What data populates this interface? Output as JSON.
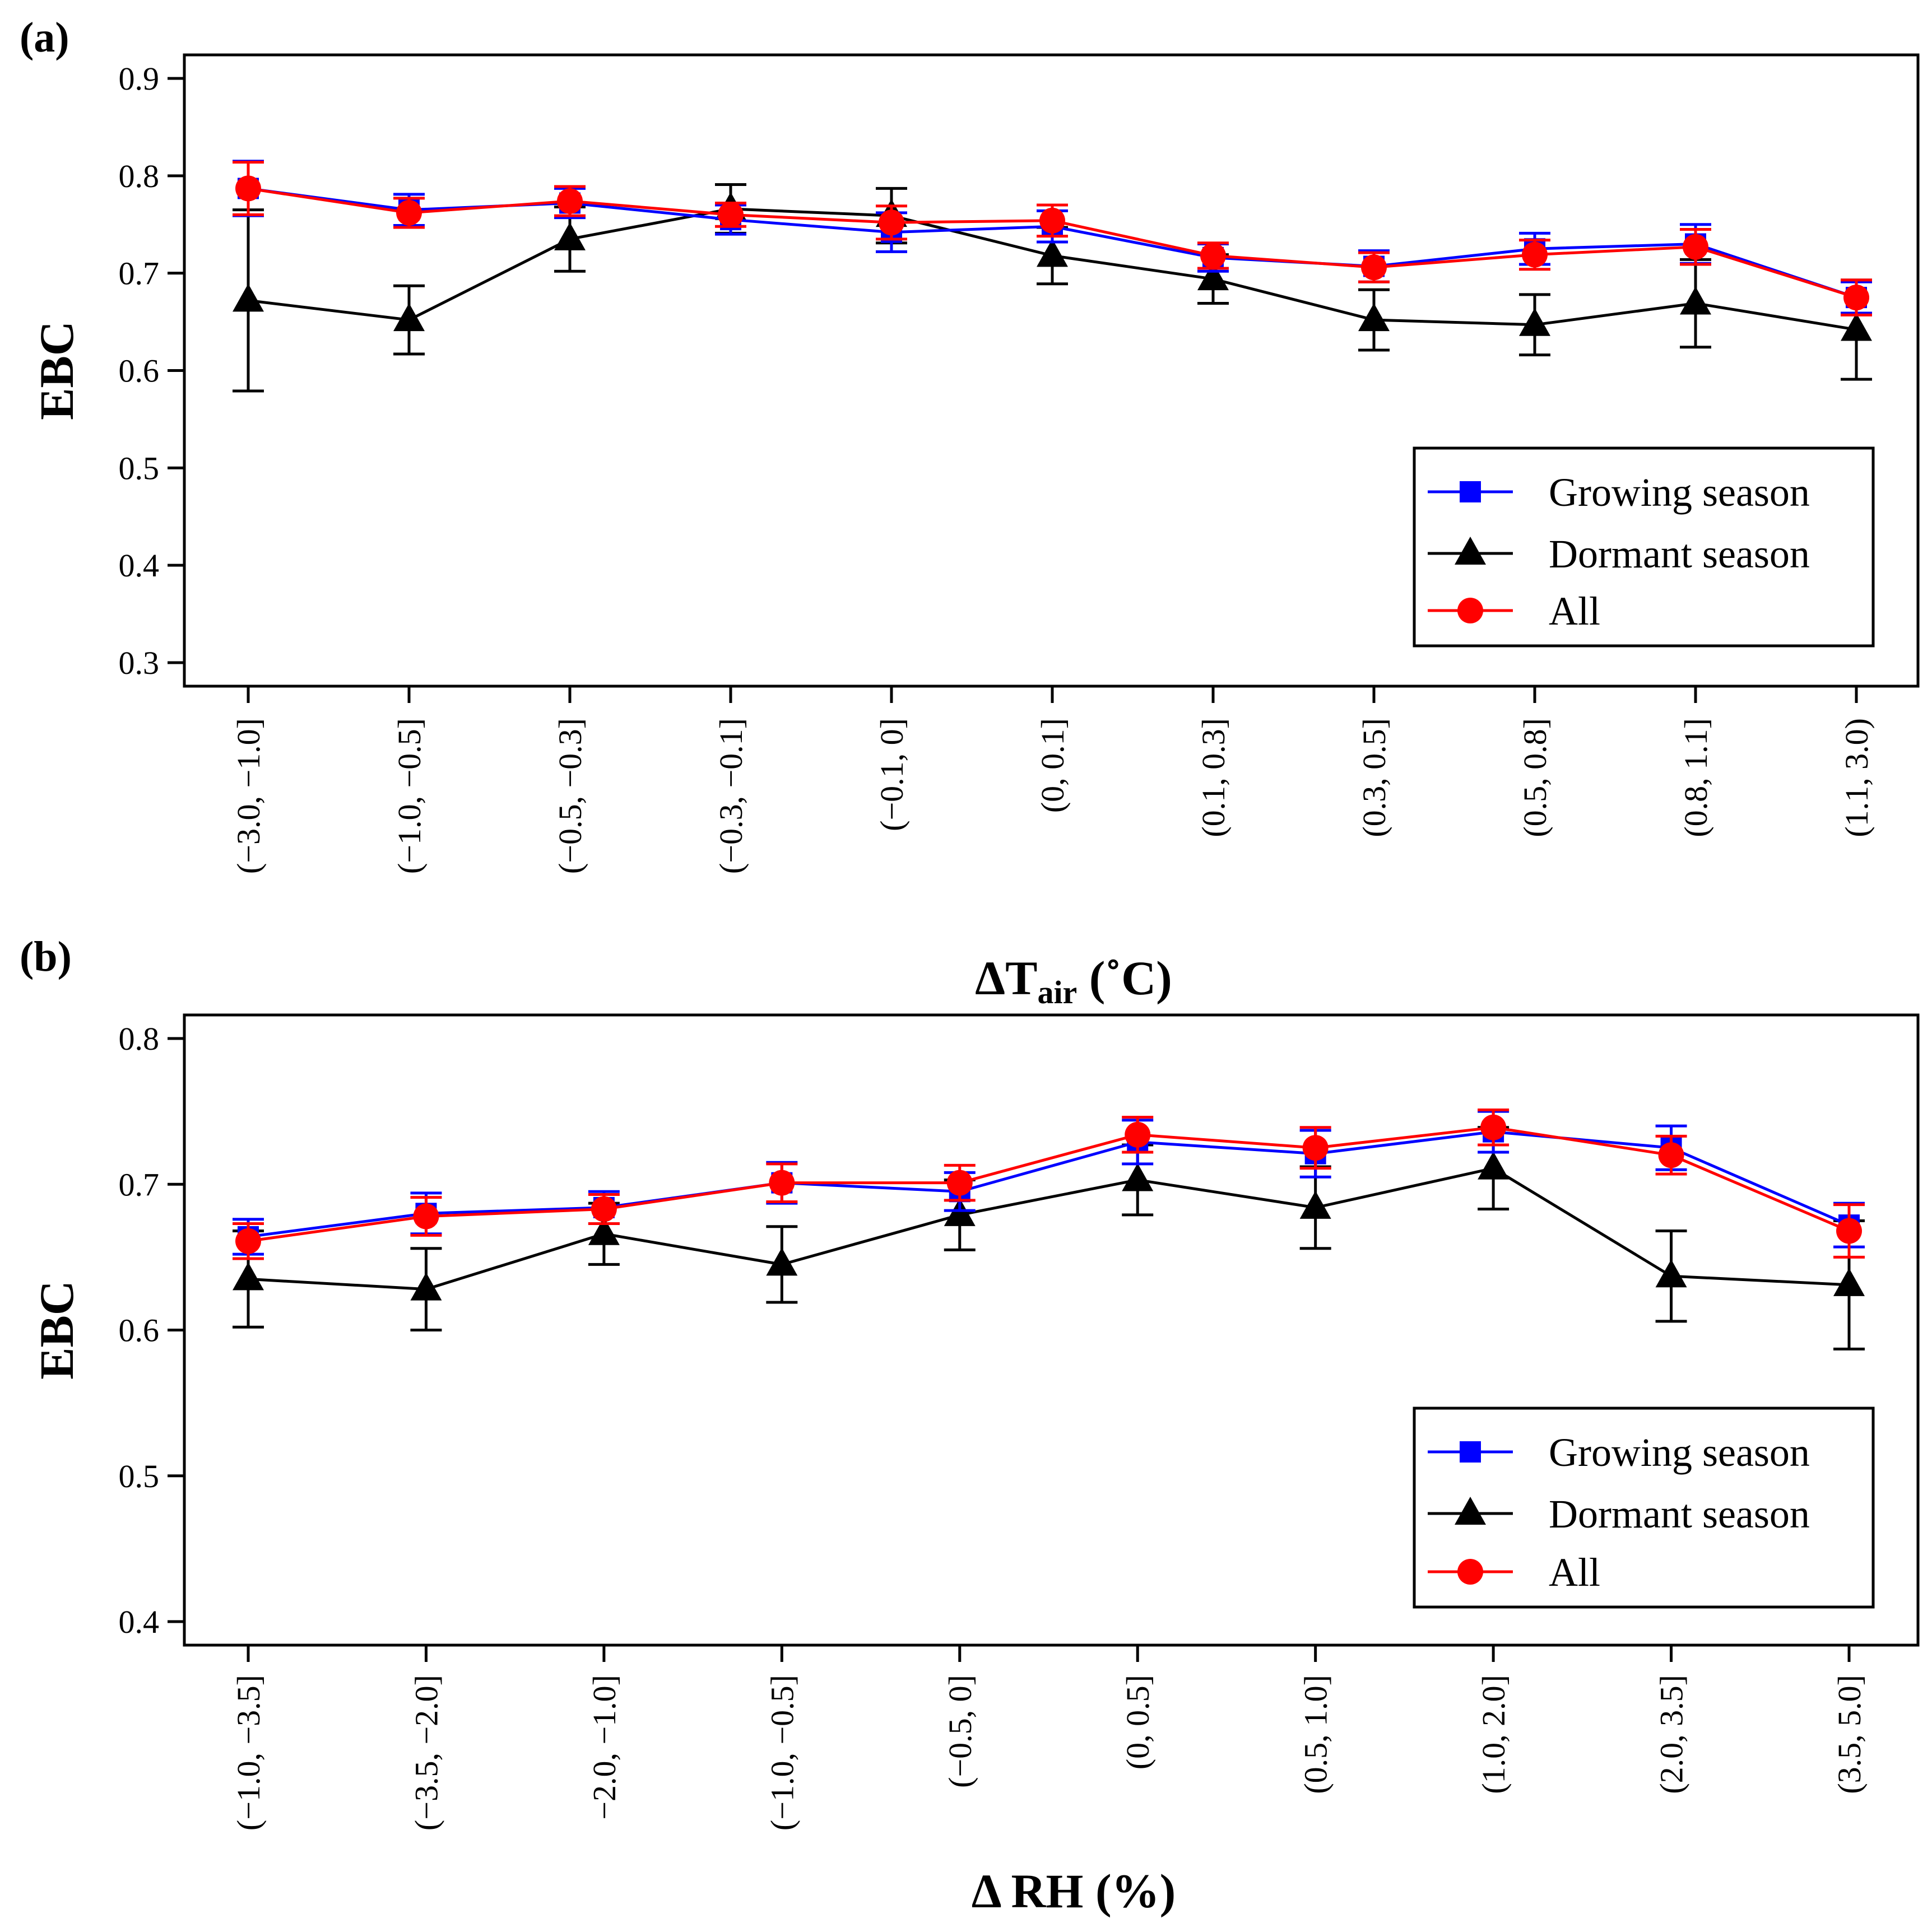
{
  "chart_data": [
    {
      "type": "line",
      "panel_label": "(a)",
      "ylabel": "EBC",
      "xlabel": {
        "prefix": "ΔT",
        "subscript": "air",
        "suffix": " (˚C)"
      },
      "ylim": [
        0.3,
        0.9
      ],
      "yticks": [
        "0.3",
        "0.4",
        "0.5",
        "0.6",
        "0.7",
        "0.8",
        "0.9"
      ],
      "categories": [
        "(−3.0, −1.0]",
        "(−1.0, −0.5]",
        "(−0.5, −0.3]",
        "(−0.3, −0.1]",
        "(−0.1, 0]",
        "(0, 0.1]",
        "(0.1, 0.3]",
        "(0.3, 0.5]",
        "(0.5, 0.8]",
        "(0.8, 1.1]",
        "(1.1, 3.0)"
      ],
      "legend": {
        "position": "bottom-right",
        "entries": [
          "Growing season",
          "Dormant season",
          "All"
        ]
      },
      "series": [
        {
          "name": "Growing season",
          "color": "#0000ff",
          "marker": "square",
          "values": [
            0.787,
            0.765,
            0.772,
            0.755,
            0.742,
            0.748,
            0.716,
            0.707,
            0.725,
            0.73,
            0.675
          ],
          "errors": [
            0.028,
            0.016,
            0.015,
            0.015,
            0.02,
            0.016,
            0.014,
            0.016,
            0.016,
            0.02,
            0.016
          ]
        },
        {
          "name": "Dormant season",
          "color": "#000000",
          "marker": "triangle",
          "values": [
            0.672,
            0.652,
            0.735,
            0.766,
            0.759,
            0.718,
            0.694,
            0.652,
            0.647,
            0.669,
            0.642
          ],
          "errors": [
            0.093,
            0.035,
            0.033,
            0.025,
            0.028,
            0.029,
            0.025,
            0.031,
            0.031,
            0.045,
            0.051
          ]
        },
        {
          "name": "All",
          "color": "#ff0000",
          "marker": "circle",
          "values": [
            0.787,
            0.762,
            0.774,
            0.76,
            0.752,
            0.754,
            0.718,
            0.706,
            0.719,
            0.727,
            0.675
          ],
          "errors": [
            0.027,
            0.015,
            0.015,
            0.012,
            0.017,
            0.016,
            0.013,
            0.015,
            0.015,
            0.018,
            0.018
          ]
        }
      ]
    },
    {
      "type": "line",
      "panel_label": "(b)",
      "ylabel": "EBC",
      "xlabel": {
        "prefix": "Δ RH (%)",
        "subscript": "",
        "suffix": ""
      },
      "ylim": [
        0.4,
        0.8
      ],
      "yticks": [
        "0.4",
        "0.5",
        "0.6",
        "0.7",
        "0.8"
      ],
      "categories": [
        "(−1.0, −3.5]",
        "(−3.5, −2.0]",
        "−2.0, −1.0]",
        "(−1.0, −0.5]",
        "(−0.5, 0]",
        "(0, 0.5]",
        "(0.5, 1.0]",
        "(1.0, 2.0]",
        "(2.0, 3.5]",
        "(3.5, 5.0]"
      ],
      "legend": {
        "position": "bottom-right",
        "entries": [
          "Growing season",
          "Dormant season",
          "All"
        ]
      },
      "series": [
        {
          "name": "Growing season",
          "color": "#0000ff",
          "marker": "square",
          "values": [
            0.664,
            0.68,
            0.684,
            0.701,
            0.695,
            0.729,
            0.721,
            0.736,
            0.725,
            0.672
          ],
          "errors": [
            0.012,
            0.014,
            0.011,
            0.014,
            0.013,
            0.015,
            0.016,
            0.014,
            0.015,
            0.015
          ]
        },
        {
          "name": "Dormant season",
          "color": "#000000",
          "marker": "triangle",
          "values": [
            0.635,
            0.628,
            0.666,
            0.645,
            0.679,
            0.703,
            0.684,
            0.711,
            0.637,
            0.631
          ],
          "errors": [
            0.033,
            0.028,
            0.021,
            0.026,
            0.024,
            0.024,
            0.028,
            0.028,
            0.031,
            0.044
          ]
        },
        {
          "name": "All",
          "color": "#ff0000",
          "marker": "circle",
          "values": [
            0.661,
            0.678,
            0.683,
            0.701,
            0.701,
            0.734,
            0.725,
            0.739,
            0.72,
            0.668
          ],
          "errors": [
            0.012,
            0.013,
            0.01,
            0.013,
            0.012,
            0.012,
            0.014,
            0.012,
            0.013,
            0.018
          ]
        }
      ]
    }
  ]
}
